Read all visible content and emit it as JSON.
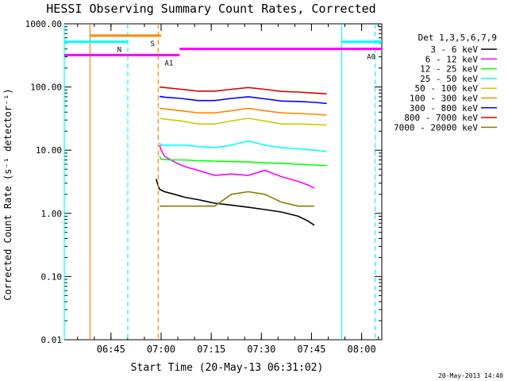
{
  "chart_data": {
    "type": "line",
    "title": "HESSI Observing Summary Count Rates, Corrected",
    "xlabel": "Start Time (20-May-13 06:31:02)",
    "ylabel": "Corrected Count Rate (s⁻¹ detector⁻¹)",
    "x_unit": "minutes after 06:31:02",
    "xlim": [
      0,
      95
    ],
    "ylim": [
      0.01,
      1000
    ],
    "y_scale": "log",
    "grid": false,
    "legend_position": "right",
    "x_ticks": [
      {
        "label": "06:45",
        "t": 13.97
      },
      {
        "label": "07:00",
        "t": 28.97
      },
      {
        "label": "07:15",
        "t": 43.97
      },
      {
        "label": "07:30",
        "t": 58.97
      },
      {
        "label": "07:45",
        "t": 73.97
      },
      {
        "label": "08:00",
        "t": 88.97
      }
    ],
    "y_ticks": [
      {
        "label": "1000.00",
        "v": 1000
      },
      {
        "label": "100.00",
        "v": 100
      },
      {
        "label": "10.00",
        "v": 10
      },
      {
        "label": "1.00",
        "v": 1
      },
      {
        "label": "0.10",
        "v": 0.1
      },
      {
        "label": "0.01",
        "v": 0.01
      }
    ],
    "legend_title": "Det 1,3,5,6,7,9",
    "series": [
      {
        "name": "3 - 6 keV",
        "color": "#000000",
        "x": [
          27.5,
          28,
          28.5,
          30,
          33,
          36,
          40,
          45,
          50,
          55,
          60,
          65,
          70,
          73,
          74.8
        ],
        "y": [
          3.5,
          2.8,
          2.4,
          2.2,
          2.0,
          1.8,
          1.65,
          1.45,
          1.35,
          1.25,
          1.15,
          1.05,
          0.9,
          0.75,
          0.65
        ]
      },
      {
        "name": "6 - 12 keV",
        "color": "#ff00ff",
        "x": [
          28.5,
          29,
          30,
          33,
          36,
          40,
          45,
          50,
          55,
          60,
          65,
          70,
          73,
          74.8
        ],
        "y": [
          12,
          10,
          8,
          6.5,
          5.5,
          4.8,
          4.0,
          4.2,
          4.0,
          4.8,
          3.8,
          3.2,
          2.8,
          2.5
        ]
      },
      {
        "name": "12 - 25 keV",
        "color": "#00ff00",
        "x": [
          28.5,
          29,
          32,
          36,
          40,
          45,
          50,
          55,
          60,
          65,
          70,
          75,
          78.5
        ],
        "y": [
          8,
          7.2,
          7.0,
          7.0,
          6.8,
          6.7,
          6.6,
          6.5,
          6.3,
          6.2,
          6.0,
          5.8,
          5.7
        ]
      },
      {
        "name": "25 - 50 keV",
        "color": "#00ffff",
        "x": [
          28.5,
          29,
          32,
          36,
          40,
          45,
          50,
          55,
          60,
          65,
          70,
          75,
          78.5
        ],
        "y": [
          13,
          12,
          12,
          12,
          11.5,
          11,
          12,
          14,
          12,
          11,
          10.5,
          10,
          9.5
        ]
      },
      {
        "name": "50 - 100 keV",
        "color": "#cccc00",
        "x": [
          28.5,
          30,
          35,
          40,
          45,
          50,
          55,
          60,
          65,
          70,
          75,
          78.5
        ],
        "y": [
          32,
          31,
          29,
          26,
          26,
          29,
          32,
          29,
          26,
          26,
          25.5,
          25
        ]
      },
      {
        "name": "100 - 300 keV",
        "color": "#ff8800",
        "x": [
          28.5,
          30,
          35,
          40,
          45,
          50,
          55,
          60,
          65,
          70,
          75,
          78.5
        ],
        "y": [
          46,
          45,
          42,
          39,
          39,
          42,
          46,
          42,
          39,
          38,
          37,
          36
        ]
      },
      {
        "name": "300 - 800 keV",
        "color": "#0000ff",
        "x": [
          28.5,
          30,
          35,
          40,
          45,
          50,
          55,
          60,
          65,
          70,
          75,
          78.5
        ],
        "y": [
          71,
          69,
          66,
          61,
          61,
          66,
          70,
          65,
          60,
          59,
          57,
          55
        ]
      },
      {
        "name": "800 - 7000 keV",
        "color": "#dd0000",
        "x": [
          28.5,
          30,
          35,
          40,
          45,
          50,
          55,
          60,
          65,
          70,
          75,
          78.5
        ],
        "y": [
          100,
          98,
          92,
          86,
          86,
          92,
          98,
          92,
          85,
          83,
          80,
          78
        ]
      },
      {
        "name": "7000 - 20000 keV",
        "color": "#808000",
        "x": [
          28.5,
          35,
          40,
          45,
          50,
          55,
          60,
          65,
          70,
          74.8
        ],
        "y": [
          1.3,
          1.3,
          1.3,
          1.3,
          2.0,
          2.2,
          2.0,
          1.5,
          1.3,
          1.3
        ]
      }
    ],
    "flags": [
      {
        "label": "S",
        "color": "#ff8800",
        "v": 650,
        "t_start": 7.7,
        "t_end": 28.97
      },
      {
        "label": "N",
        "color": "#00ffff",
        "v": 520,
        "t_start": 0,
        "t_end": 19.0
      },
      {
        "label": "",
        "color": "#00ffff",
        "v": 520,
        "t_start": 83.0,
        "t_end": 95
      },
      {
        "label": "A0",
        "color": "#ff00ff",
        "v": 400,
        "t_start": 34.5,
        "t_end": 95
      },
      {
        "label": "A1",
        "color": "#ff00ff",
        "v": 320,
        "t_start": 0,
        "t_end": 34.5
      }
    ],
    "markers": [
      {
        "t": 0,
        "color": "#00ffff",
        "style": "solid"
      },
      {
        "t": 7.7,
        "color": "#ff8800",
        "style": "solid"
      },
      {
        "t": 19.0,
        "color": "#00ffff",
        "style": "dashed"
      },
      {
        "t": 28.1,
        "color": "#ff8800",
        "style": "dashed"
      },
      {
        "t": 83.0,
        "color": "#00ffff",
        "style": "solid"
      },
      {
        "t": 93.0,
        "color": "#00ffff",
        "style": "dashed"
      }
    ]
  },
  "footer": {
    "timestamp": "20-May-2013 14:40"
  }
}
